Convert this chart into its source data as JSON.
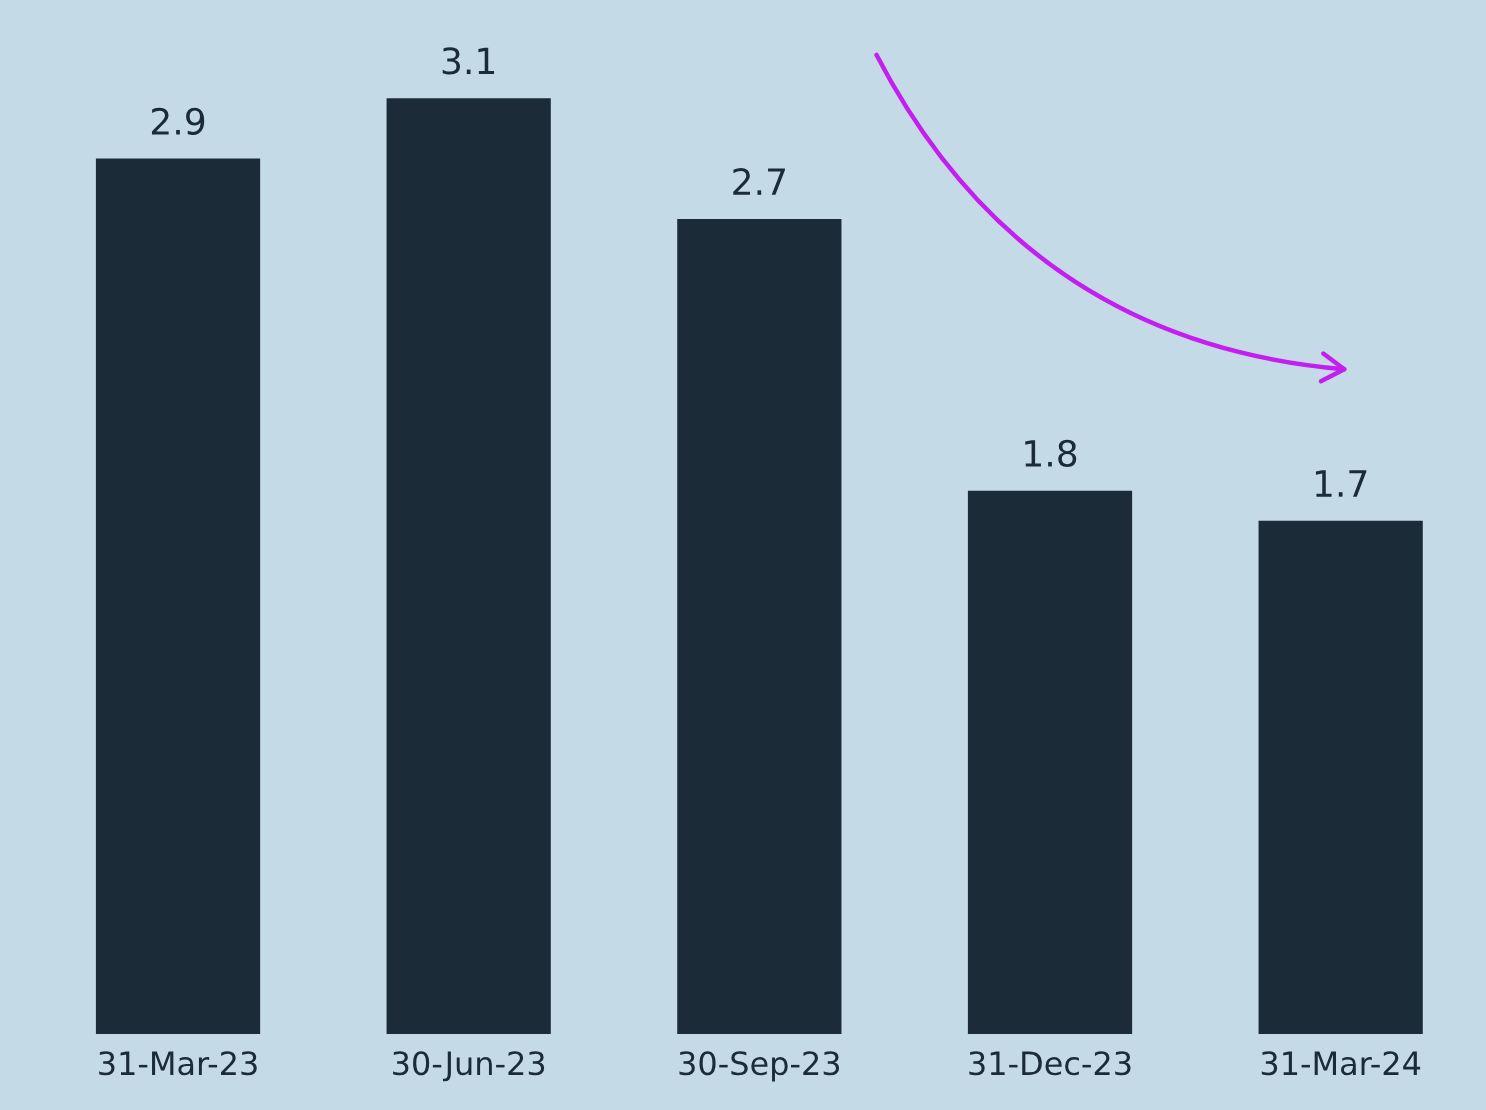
{
  "chart_data": {
    "type": "bar",
    "categories": [
      "31-Mar-23",
      "30-Jun-23",
      "30-Sep-23",
      "31-Dec-23",
      "31-Mar-24"
    ],
    "values": [
      2.9,
      3.1,
      2.7,
      1.8,
      1.7
    ],
    "color": "#1b2b37",
    "data_labels": true,
    "grid": false,
    "legend": false
  }
}
